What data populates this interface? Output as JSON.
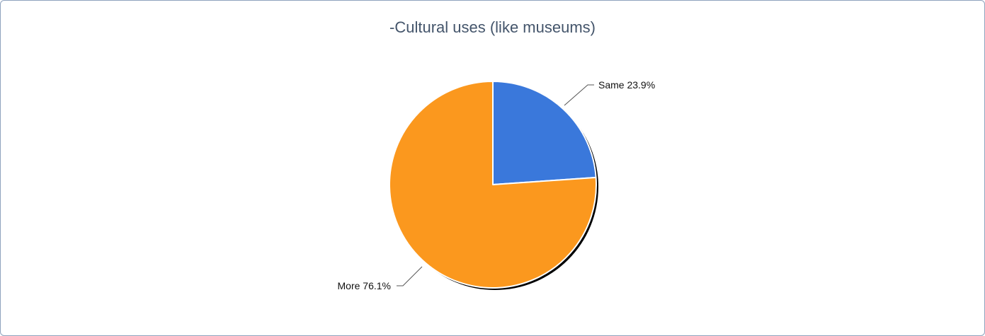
{
  "chart_data": {
    "type": "pie",
    "title": "-Cultural uses (like museums)",
    "slices": [
      {
        "label": "Same",
        "value": 23.9,
        "value_label": "23.9%",
        "color": "#3a78db"
      },
      {
        "label": "More",
        "value": 76.1,
        "value_label": "76.1%",
        "color": "#fb981e"
      }
    ],
    "slice_border_color": "#ffffff",
    "shadow_color": "#000000"
  }
}
